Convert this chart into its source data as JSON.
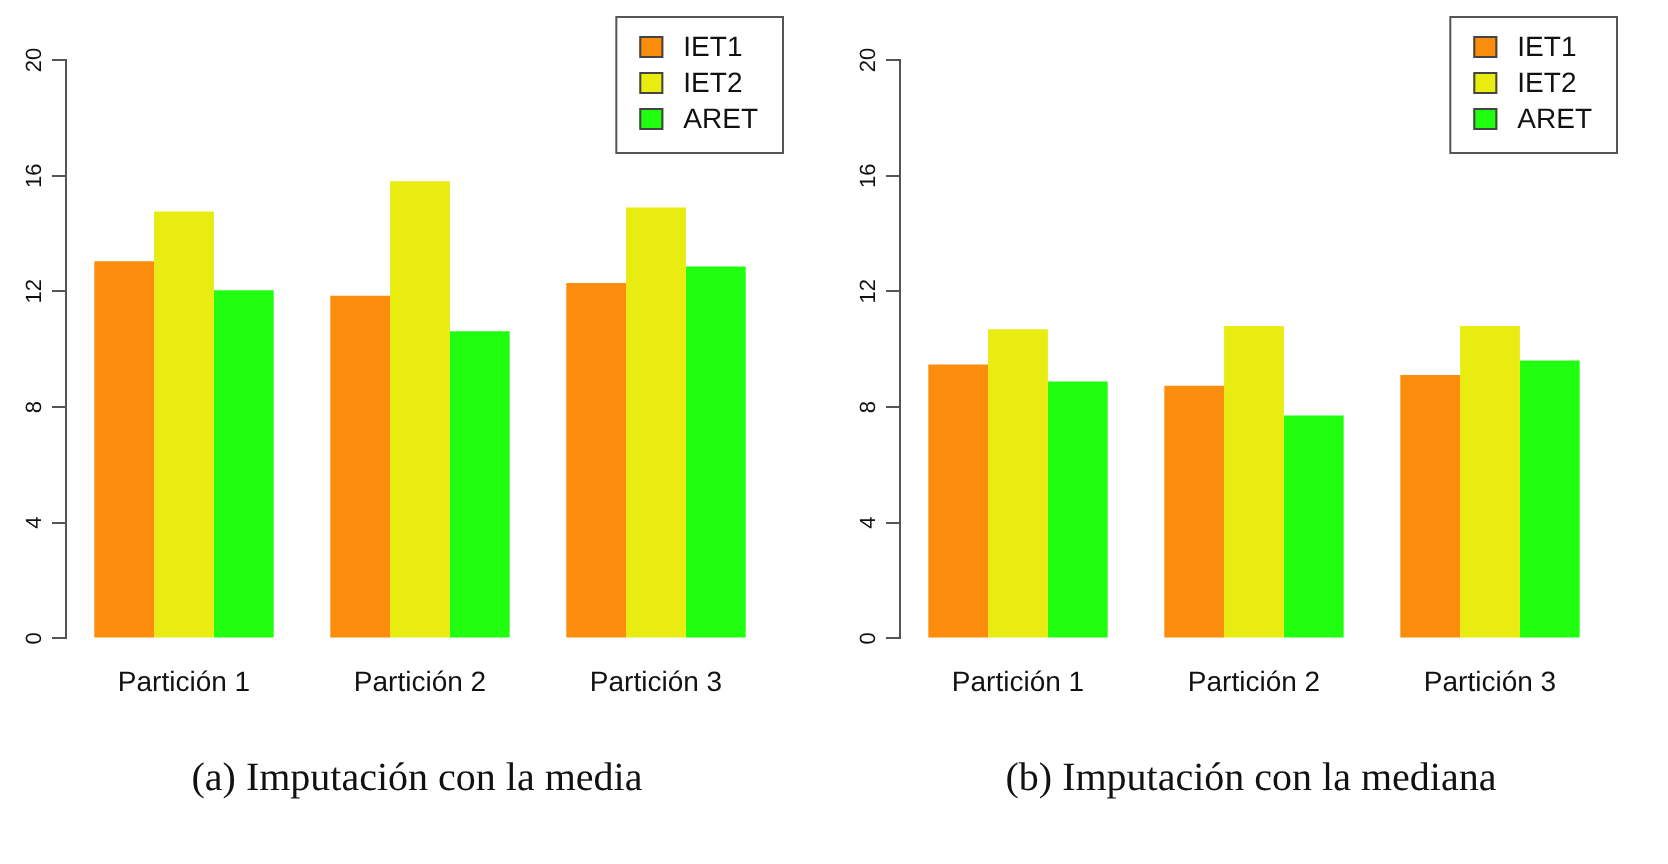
{
  "chart_data": [
    {
      "type": "bar",
      "categories": [
        "Partición 1",
        "Partición 2",
        "Partición 3"
      ],
      "series": [
        {
          "name": "IET1",
          "color": "#fb8c0c",
          "values": [
            13.04,
            11.85,
            12.29
          ]
        },
        {
          "name": "IET2",
          "color": "#e8ec10",
          "values": [
            14.76,
            15.81,
            14.9
          ]
        },
        {
          "name": "ARET",
          "color": "#20ff10",
          "values": [
            12.04,
            10.62,
            12.86
          ]
        }
      ],
      "ylim": [
        0,
        20
      ],
      "yticks": [
        0,
        4,
        8,
        12,
        16,
        20
      ],
      "legend": "top right",
      "annotations": [
        "(a) Imputación con la media"
      ]
    },
    {
      "type": "bar",
      "categories": [
        "Partición 1",
        "Partición 2",
        "Partición 3"
      ],
      "series": [
        {
          "name": "IET1",
          "color": "#fb8c0c",
          "values": [
            9.47,
            8.74,
            9.11
          ]
        },
        {
          "name": "IET2",
          "color": "#e8ec10",
          "values": [
            10.69,
            10.8,
            10.8
          ]
        },
        {
          "name": "ARET",
          "color": "#20ff10",
          "values": [
            8.88,
            7.71,
            9.61
          ]
        }
      ],
      "ylim": [
        0,
        20
      ],
      "yticks": [
        0,
        4,
        8,
        12,
        16,
        20
      ],
      "legend": "top right",
      "annotations": [
        "(b) Imputación con la mediana"
      ]
    }
  ]
}
